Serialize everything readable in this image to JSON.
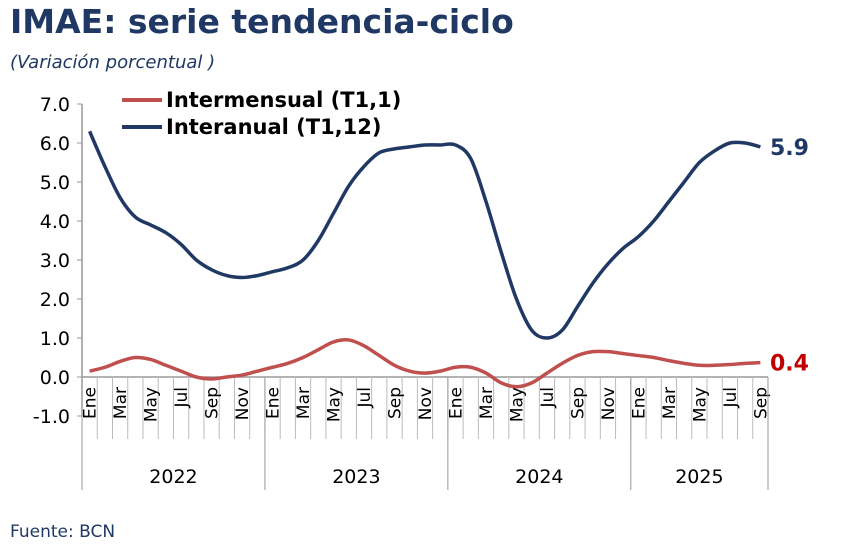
{
  "title": "IMAE: serie tendencia-ciclo",
  "subtitle": "(Variación porcentual )",
  "source": "Fuente: BCN",
  "chart_data": {
    "type": "line",
    "title": "IMAE: serie tendencia-ciclo",
    "ylabel": "Variación porcentual",
    "ylim": [
      -1.0,
      7.0
    ],
    "yticks": [
      "7.0",
      "6.0",
      "5.0",
      "4.0",
      "3.0",
      "2.0",
      "1.0",
      "0.0",
      "-1.0"
    ],
    "ytick_values": [
      7,
      6,
      5,
      4,
      3,
      2,
      1,
      0,
      -1
    ],
    "month_labels": [
      "Ene",
      "Mar",
      "May",
      "Jul",
      "Sep",
      "Nov"
    ],
    "years": [
      "2022",
      "2023",
      "2024",
      "2025"
    ],
    "n_points": 45,
    "legend_placement": "top-center",
    "series": [
      {
        "name": "Intermensual (T1,1)",
        "color": "#c0504d",
        "end_label": "0.4",
        "end_label_color": "#c00000",
        "values": [
          0.15,
          0.25,
          0.4,
          0.5,
          0.45,
          0.3,
          0.15,
          0.0,
          -0.05,
          0.0,
          0.05,
          0.15,
          0.25,
          0.35,
          0.5,
          0.7,
          0.9,
          0.95,
          0.8,
          0.55,
          0.3,
          0.15,
          0.1,
          0.15,
          0.25,
          0.25,
          0.1,
          -0.15,
          -0.25,
          -0.15,
          0.1,
          0.35,
          0.55,
          0.65,
          0.65,
          0.6,
          0.55,
          0.5,
          0.42,
          0.35,
          0.3,
          0.3,
          0.32,
          0.35,
          0.37
        ]
      },
      {
        "name": "Interanual (T1,12)",
        "color": "#1f3864",
        "end_label": "5.9",
        "end_label_color": "#1f3864",
        "values": [
          6.3,
          5.4,
          4.6,
          4.1,
          3.9,
          3.7,
          3.4,
          3.0,
          2.75,
          2.6,
          2.55,
          2.6,
          2.7,
          2.8,
          3.0,
          3.5,
          4.2,
          4.9,
          5.4,
          5.75,
          5.85,
          5.9,
          5.95,
          5.95,
          5.95,
          5.6,
          4.5,
          3.2,
          2.0,
          1.2,
          1.0,
          1.2,
          1.8,
          2.4,
          2.9,
          3.3,
          3.6,
          4.0,
          4.5,
          5.0,
          5.5,
          5.8,
          6.0,
          6.0,
          5.9
        ]
      }
    ]
  }
}
